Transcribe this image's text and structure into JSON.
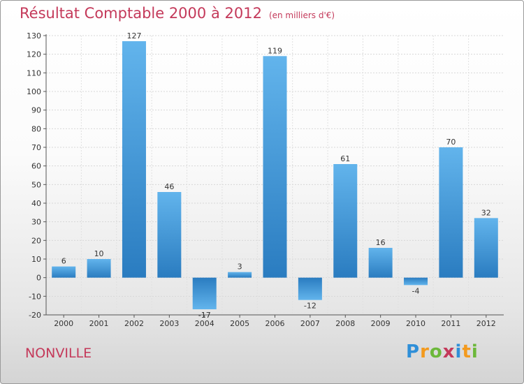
{
  "header": {
    "title": "Résultat Comptable 2000 à 2012",
    "subtitle": "(en milliers d'€)"
  },
  "commune": "NONVILLE",
  "logo": {
    "text": "Proxiti",
    "letters": [
      "P",
      "r",
      "o",
      "x",
      "i",
      "t",
      "i"
    ],
    "letter_colors": [
      "#2f8fd8",
      "#f39a1e",
      "#6cb83a",
      "#c4395a",
      "#2f8fd8",
      "#f39a1e",
      "#6cb83a"
    ]
  },
  "colors": {
    "bar_light": "#62b4ec",
    "bar_dark": "#2a7cc0",
    "accent": "#c4395a"
  },
  "chart_data": {
    "type": "bar",
    "title": "Résultat Comptable 2000 à 2012",
    "subtitle": "(en milliers d'€)",
    "categories": [
      "2000",
      "2001",
      "2002",
      "2003",
      "2004",
      "2005",
      "2006",
      "2007",
      "2008",
      "2009",
      "2010",
      "2011",
      "2012"
    ],
    "values": [
      6,
      10,
      127,
      46,
      -17,
      3,
      119,
      -12,
      61,
      16,
      -4,
      70,
      32
    ],
    "ylim": [
      -20,
      130
    ],
    "yticks": [
      -20,
      -10,
      0,
      10,
      20,
      30,
      40,
      50,
      60,
      70,
      80,
      90,
      100,
      110,
      120,
      130
    ],
    "xlabel": "",
    "ylabel": "",
    "grid": true
  }
}
